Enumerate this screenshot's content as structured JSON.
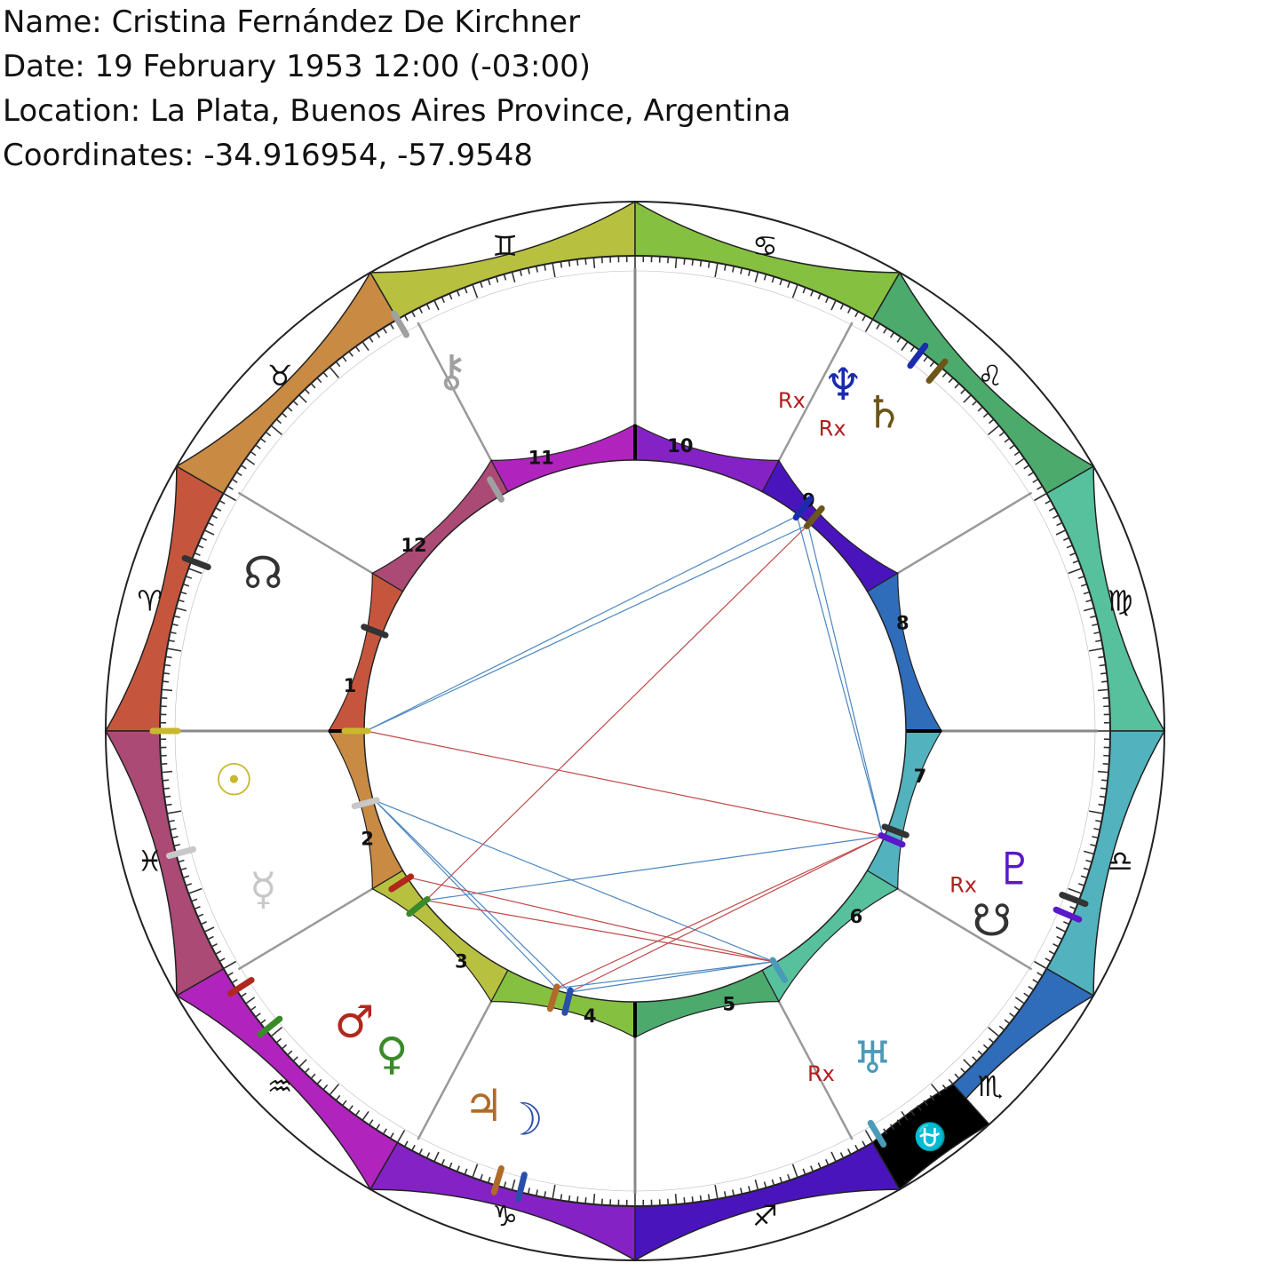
{
  "info": {
    "name": "Name: Cristina Fernández De Kirchner",
    "date": "Date: 19 February 1953 12:00 (-03:00)",
    "location": "Location: La Plata, Buenos Aires Province, Argentina",
    "coordinates": "Coordinates: -34.916954, -57.9548"
  },
  "ascendant": 0,
  "signs": [
    {
      "name": "aries",
      "glyph": "♈",
      "color": "#c5563d",
      "start": 0
    },
    {
      "name": "taurus",
      "glyph": "♉",
      "color": "#c98a44",
      "start": 30
    },
    {
      "name": "gemini",
      "glyph": "♊",
      "color": "#b8c040",
      "start": 60
    },
    {
      "name": "cancer",
      "glyph": "♋",
      "color": "#86c040",
      "start": 90
    },
    {
      "name": "leo",
      "glyph": "♌",
      "color": "#4caa6c",
      "start": 120
    },
    {
      "name": "virgo",
      "glyph": "♍",
      "color": "#57c09c",
      "start": 150
    },
    {
      "name": "libra",
      "glyph": "♎",
      "color": "#52b2bd",
      "start": 180
    },
    {
      "name": "scorpio",
      "glyph": "♏",
      "color": "#2f6cba",
      "start": 210
    },
    {
      "name": "sagittarius",
      "glyph": "♐",
      "color": "#4a14bd",
      "start": 240
    },
    {
      "name": "capricorn",
      "glyph": "♑",
      "color": "#8422c6",
      "start": 270
    },
    {
      "name": "aquarius",
      "glyph": "♒",
      "color": "#b024bd",
      "start": 300
    },
    {
      "name": "pisces",
      "glyph": "♓",
      "color": "#ab4a74",
      "start": 330
    }
  ],
  "houses": [
    {
      "label": "1",
      "start": 0,
      "color": "#c5563d"
    },
    {
      "label": "2",
      "start": 329,
      "color": "#c98a44"
    },
    {
      "label": "3",
      "start": 298,
      "color": "#b8c040"
    },
    {
      "label": "4",
      "start": 270,
      "color": "#86c040"
    },
    {
      "label": "5",
      "start": 242,
      "color": "#4caa6c"
    },
    {
      "label": "6",
      "start": 211,
      "color": "#57c09c"
    },
    {
      "label": "7",
      "start": 180,
      "color": "#52b2bd"
    },
    {
      "label": "8",
      "start": 149,
      "color": "#2f6cba"
    },
    {
      "label": "9",
      "start": 118,
      "color": "#4a14bd"
    },
    {
      "label": "10",
      "start": 90,
      "color": "#8422c6"
    },
    {
      "label": "11",
      "start": 62,
      "color": "#b024bd"
    },
    {
      "label": "12",
      "start": 31,
      "color": "#ab4a74"
    }
  ],
  "ophiuchus": {
    "glyph": "⛎",
    "color": "#000000",
    "start": 228,
    "end": 240
  },
  "planets": [
    {
      "name": "sun",
      "glyph": "☉",
      "color": "#c8b830",
      "angle": 0,
      "glyph_angle": 353
    },
    {
      "name": "moon",
      "glyph": "☽",
      "color": "#2a4fa8",
      "angle": 284,
      "glyph_angle": 286
    },
    {
      "name": "mercury",
      "glyph": "☿",
      "color": "#c8c8c8",
      "angle": 345,
      "glyph_angle": 337
    },
    {
      "name": "venus",
      "glyph": "♀",
      "color": "#3a8a2a",
      "angle": 321,
      "glyph_angle": 307
    },
    {
      "name": "mars",
      "glyph": "♂",
      "color": "#b0281c",
      "angle": 327,
      "glyph_angle": 314
    },
    {
      "name": "jupiter",
      "glyph": "♃",
      "color": "#b06a2a",
      "angle": 287,
      "glyph_angle": 292
    },
    {
      "name": "saturn",
      "glyph": "♄",
      "color": "#6b5518",
      "angle": 130,
      "glyph_angle": 128
    },
    {
      "name": "uranus",
      "glyph": "♅",
      "color": "#4a9ab8",
      "angle": 239,
      "glyph_angle": 234
    },
    {
      "name": "neptune",
      "glyph": "♆",
      "color": "#1a2bb0",
      "angle": 127,
      "glyph_angle": 121
    },
    {
      "name": "pluto",
      "glyph": "♇",
      "color": "#5a18c8",
      "angle": 203,
      "glyph_angle": 200
    },
    {
      "name": "chiron",
      "glyph": "⚷",
      "color": "#a0a0a0",
      "angle": 60,
      "glyph_angle": 63
    },
    {
      "name": "north-node",
      "glyph": "☊",
      "color": "#333333",
      "angle": 21,
      "glyph_angle": 23
    },
    {
      "name": "south-node",
      "glyph": "☋",
      "color": "#333333",
      "angle": 201,
      "glyph_angle": 208
    }
  ],
  "retrograde": {
    "label": "Rx",
    "color": "#b02020",
    "planets": [
      "saturn",
      "neptune",
      "pluto",
      "uranus"
    ]
  },
  "aspects": [
    {
      "from": "sun",
      "to": "saturn",
      "color": "#4a86c0"
    },
    {
      "from": "sun",
      "to": "neptune",
      "color": "#4a86c0"
    },
    {
      "from": "sun",
      "to": "pluto",
      "color": "#c04a4a"
    },
    {
      "from": "saturn",
      "to": "venus",
      "color": "#c04a4a"
    },
    {
      "from": "neptune",
      "to": "pluto",
      "color": "#4a86c0"
    },
    {
      "from": "saturn",
      "to": "pluto",
      "color": "#4a86c0"
    },
    {
      "from": "mercury",
      "to": "uranus",
      "color": "#4a86c0"
    },
    {
      "from": "mercury",
      "to": "jupiter",
      "color": "#4a86c0"
    },
    {
      "from": "mercury",
      "to": "moon",
      "color": "#4a86c0"
    },
    {
      "from": "venus",
      "to": "pluto",
      "color": "#4a86c0"
    },
    {
      "from": "mars",
      "to": "uranus",
      "color": "#c04a4a"
    },
    {
      "from": "venus",
      "to": "uranus",
      "color": "#c04a4a"
    },
    {
      "from": "jupiter",
      "to": "pluto",
      "color": "#c04a4a"
    },
    {
      "from": "moon",
      "to": "pluto",
      "color": "#c04a4a"
    },
    {
      "from": "jupiter",
      "to": "uranus",
      "color": "#4a86c0"
    },
    {
      "from": "moon",
      "to": "uranus",
      "color": "#4a86c0"
    }
  ]
}
